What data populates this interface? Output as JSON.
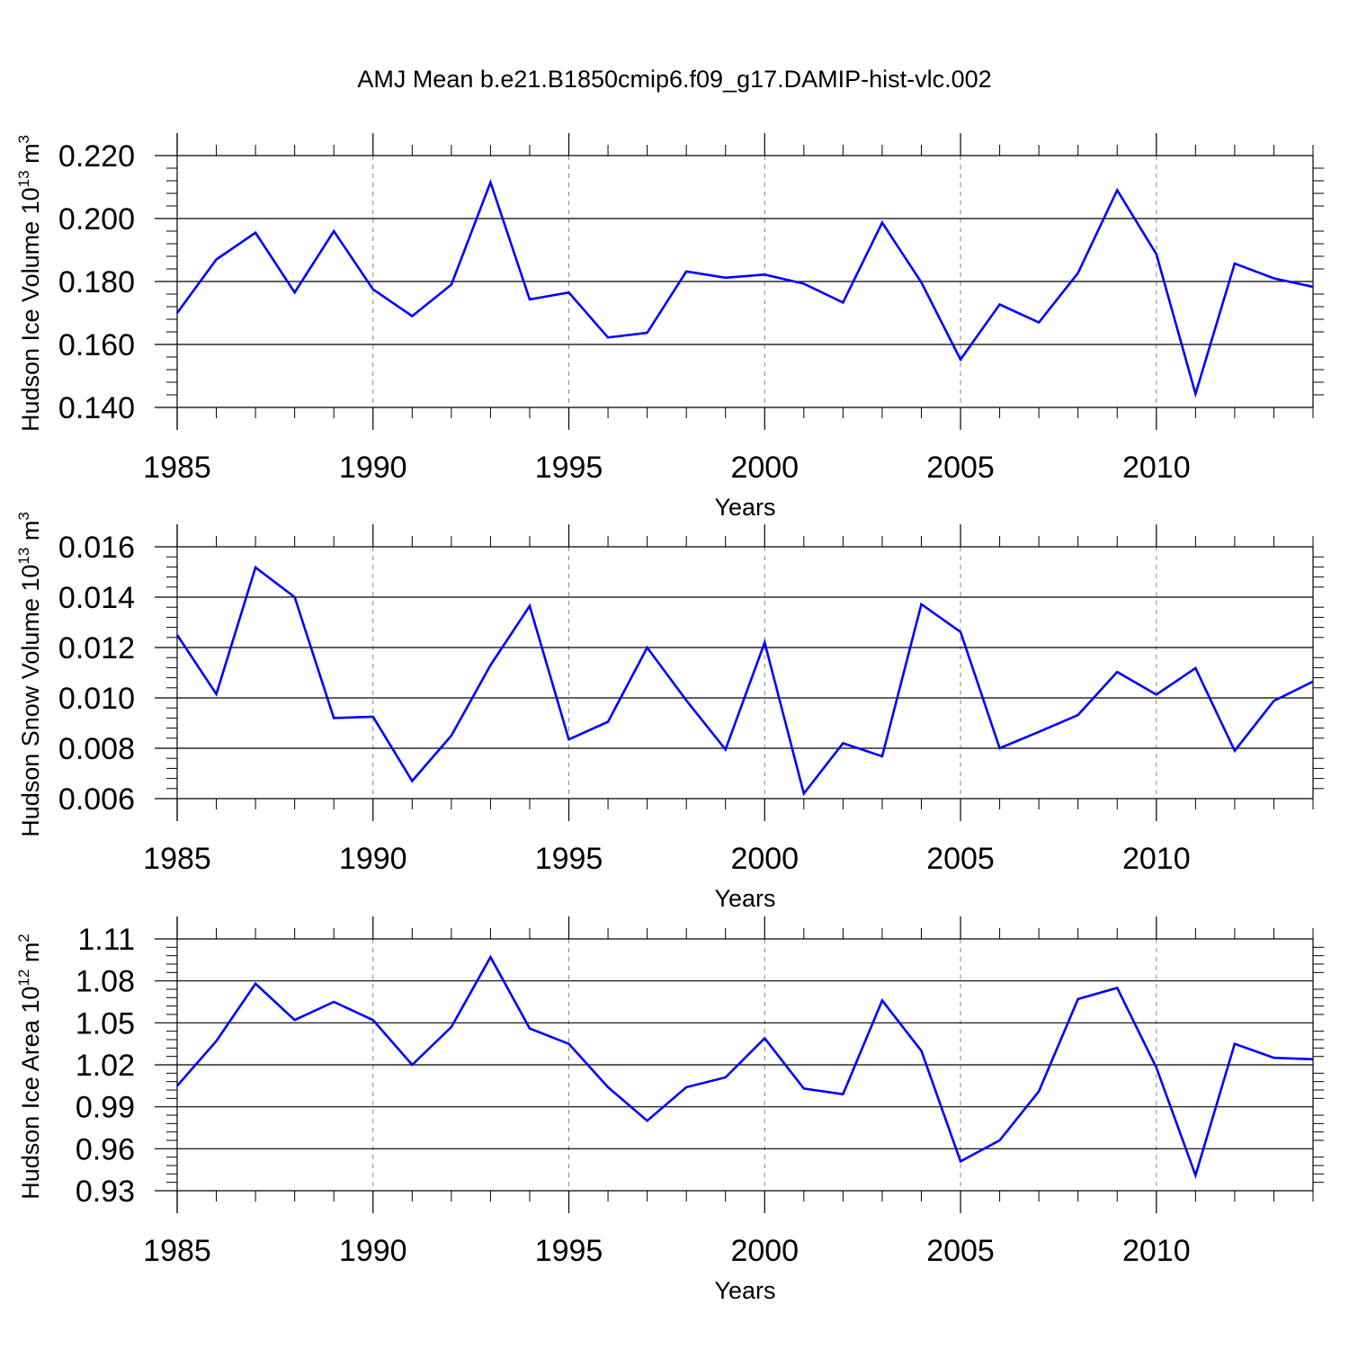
{
  "title": "AMJ Mean b.e21.B1850cmip6.f09_g17.DAMIP-hist-vlc.002",
  "colors": {
    "line": "#0000ff",
    "axis": "#000000",
    "grid": "#888888"
  },
  "chart_data": [
    {
      "type": "line",
      "ylabel": {
        "text": "Hudson Ice Volume 10",
        "exp": "13",
        "unit": "m",
        "unit_exp": "3"
      },
      "xlabel": "Years",
      "xlim": [
        1985,
        2014
      ],
      "ylim": [
        0.14,
        0.22
      ],
      "yticks": [
        "0.140",
        "0.160",
        "0.180",
        "0.200",
        "0.220"
      ],
      "ytick_values": [
        0.14,
        0.16,
        0.18,
        0.2,
        0.22
      ],
      "xticks": [
        1985,
        1990,
        1995,
        2000,
        2005,
        2010
      ],
      "x": [
        1985,
        1986,
        1987,
        1988,
        1989,
        1990,
        1991,
        1992,
        1993,
        1994,
        1995,
        1996,
        1997,
        1998,
        1999,
        2000,
        2001,
        2002,
        2003,
        2004,
        2005,
        2006,
        2007,
        2008,
        2009,
        2010,
        2011,
        2012,
        2013,
        2014
      ],
      "series": [
        {
          "values": [
            0.17,
            0.187,
            0.1955,
            0.1765,
            0.196,
            0.1775,
            0.169,
            0.179,
            0.2115,
            0.1743,
            0.1765,
            0.1622,
            0.1637,
            0.1832,
            0.1812,
            0.1822,
            0.1793,
            0.1733,
            0.1987,
            0.1797,
            0.1552,
            0.1727,
            0.167,
            0.1827,
            0.209,
            0.1887,
            0.1443,
            0.1857,
            0.181,
            0.1783
          ]
        }
      ]
    },
    {
      "type": "line",
      "ylabel": {
        "text": "Hudson Snow Volume 10",
        "exp": "13",
        "unit": "m",
        "unit_exp": "3"
      },
      "xlabel": "Years",
      "xlim": [
        1985,
        2014
      ],
      "ylim": [
        0.006,
        0.016
      ],
      "yticks": [
        "0.006",
        "0.008",
        "0.010",
        "0.012",
        "0.014",
        "0.016"
      ],
      "ytick_values": [
        0.006,
        0.008,
        0.01,
        0.012,
        0.014,
        0.016
      ],
      "xticks": [
        1985,
        1990,
        1995,
        2000,
        2005,
        2010
      ],
      "x": [
        1985,
        1986,
        1987,
        1988,
        1989,
        1990,
        1991,
        1992,
        1993,
        1994,
        1995,
        1996,
        1997,
        1998,
        1999,
        2000,
        2001,
        2002,
        2003,
        2004,
        2005,
        2006,
        2007,
        2008,
        2009,
        2010,
        2011,
        2012,
        2013,
        2014
      ],
      "series": [
        {
          "values": [
            0.0125,
            0.01015,
            0.01518,
            0.014,
            0.0092,
            0.00925,
            0.0067,
            0.0085,
            0.0113,
            0.01365,
            0.00835,
            0.00905,
            0.012,
            0.0099,
            0.00795,
            0.0122,
            0.0062,
            0.0082,
            0.00768,
            0.01372,
            0.01262,
            0.008,
            0.00865,
            0.00932,
            0.01103,
            0.01013,
            0.01118,
            0.0079,
            0.00988,
            0.01065
          ]
        }
      ]
    },
    {
      "type": "line",
      "ylabel": {
        "text": "Hudson Ice Area 10",
        "exp": "12",
        "unit": "m",
        "unit_exp": "2"
      },
      "xlabel": "Years",
      "xlim": [
        1985,
        2014
      ],
      "ylim": [
        0.93,
        1.11
      ],
      "yticks": [
        "0.93",
        "0.96",
        "0.99",
        "1.02",
        "1.05",
        "1.08",
        "1.11"
      ],
      "ytick_values": [
        0.93,
        0.96,
        0.99,
        1.02,
        1.05,
        1.08,
        1.11
      ],
      "xticks": [
        1985,
        1990,
        1995,
        2000,
        2005,
        2010
      ],
      "x": [
        1985,
        1986,
        1987,
        1988,
        1989,
        1990,
        1991,
        1992,
        1993,
        1994,
        1995,
        1996,
        1997,
        1998,
        1999,
        2000,
        2001,
        2002,
        2003,
        2004,
        2005,
        2006,
        2007,
        2008,
        2009,
        2010,
        2011,
        2012,
        2013,
        2014
      ],
      "series": [
        {
          "values": [
            1.005,
            1.037,
            1.078,
            1.052,
            1.065,
            1.052,
            1.02,
            1.047,
            1.097,
            1.046,
            1.035,
            1.004,
            0.98,
            1.004,
            1.011,
            1.039,
            1.003,
            0.999,
            1.066,
            1.03,
            0.951,
            0.966,
            1.001,
            1.067,
            1.075,
            1.018,
            0.941,
            1.035,
            1.025,
            1.024
          ]
        }
      ]
    }
  ]
}
